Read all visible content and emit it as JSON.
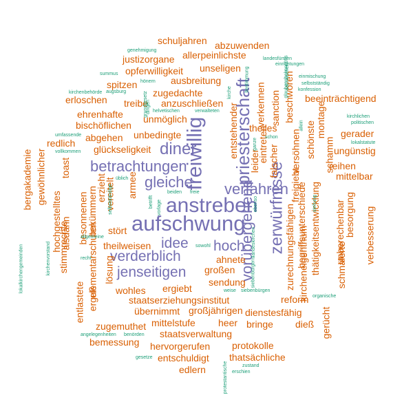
{
  "colors": {
    "purple": "#7570b3",
    "orange": "#d95f02",
    "teal": "#1b9e77"
  },
  "words": [
    {
      "text": "aufschwung",
      "c": "purple"
    },
    {
      "text": "anstreben",
      "c": "purple"
    },
    {
      "text": "freiwillig",
      "c": "purple"
    },
    {
      "text": "priesterschaft",
      "c": "purple"
    },
    {
      "text": "zerwürfnisse",
      "c": "purple"
    },
    {
      "text": "vorübergehend",
      "c": "purple"
    },
    {
      "text": "betrachtungen",
      "c": "purple"
    },
    {
      "text": "verfahren",
      "c": "purple"
    },
    {
      "text": "gleiche",
      "c": "purple"
    },
    {
      "text": "diner",
      "c": "purple"
    },
    {
      "text": "verderblich",
      "c": "purple"
    },
    {
      "text": "jenseitigen",
      "c": "purple"
    },
    {
      "text": "idee",
      "c": "purple"
    },
    {
      "text": "hoch",
      "c": "purple"
    },
    {
      "text": "schuljahren",
      "c": "orange"
    },
    {
      "text": "abzuwenden",
      "c": "orange"
    },
    {
      "text": "justizorgane",
      "c": "orange"
    },
    {
      "text": "allerpeinlichste",
      "c": "orange"
    },
    {
      "text": "opferwilligkeit",
      "c": "orange"
    },
    {
      "text": "unseligen",
      "c": "orange"
    },
    {
      "text": "spitzen",
      "c": "orange"
    },
    {
      "text": "ausbreitung",
      "c": "orange"
    },
    {
      "text": "zugedachte",
      "c": "orange"
    },
    {
      "text": "erloschen",
      "c": "orange"
    },
    {
      "text": "treibe",
      "c": "orange"
    },
    {
      "text": "anzuschließen",
      "c": "orange"
    },
    {
      "text": "ehrenhafte",
      "c": "orange"
    },
    {
      "text": "beeinträchtigend",
      "c": "orange"
    },
    {
      "text": "bischöflichen",
      "c": "orange"
    },
    {
      "text": "unmöglich",
      "c": "orange"
    },
    {
      "text": "abgehen",
      "c": "orange"
    },
    {
      "text": "unbedingte",
      "c": "orange"
    },
    {
      "text": "theiles",
      "c": "orange"
    },
    {
      "text": "gerader",
      "c": "orange"
    },
    {
      "text": "redlich",
      "c": "orange"
    },
    {
      "text": "glückseligkeit",
      "c": "orange"
    },
    {
      "text": "ungünstig",
      "c": "orange"
    },
    {
      "text": "reihen",
      "c": "orange"
    },
    {
      "text": "mittelbar",
      "c": "orange"
    },
    {
      "text": "stört",
      "c": "orange"
    },
    {
      "text": "theilweisen",
      "c": "orange"
    },
    {
      "text": "ahnete",
      "c": "orange"
    },
    {
      "text": "großen",
      "c": "orange"
    },
    {
      "text": "sendung",
      "c": "orange"
    },
    {
      "text": "wohles",
      "c": "orange"
    },
    {
      "text": "ergiebt",
      "c": "orange"
    },
    {
      "text": "staatserziehungsinstitut",
      "c": "orange"
    },
    {
      "text": "übernimmt",
      "c": "orange"
    },
    {
      "text": "großjährigen",
      "c": "orange"
    },
    {
      "text": "dienstesfähig",
      "c": "orange"
    },
    {
      "text": "reform",
      "c": "orange"
    },
    {
      "text": "zugemuthet",
      "c": "orange"
    },
    {
      "text": "mittelstufe",
      "c": "orange"
    },
    {
      "text": "heer",
      "c": "orange"
    },
    {
      "text": "bringe",
      "c": "orange"
    },
    {
      "text": "dieß",
      "c": "orange"
    },
    {
      "text": "staatsverwaltung",
      "c": "orange"
    },
    {
      "text": "bemessung",
      "c": "orange"
    },
    {
      "text": "hervorgerufen",
      "c": "orange"
    },
    {
      "text": "protokolle",
      "c": "orange"
    },
    {
      "text": "entschuldigt",
      "c": "orange"
    },
    {
      "text": "thatsächliche",
      "c": "orange"
    },
    {
      "text": "edlern",
      "c": "orange"
    },
    {
      "text": "bergakademie",
      "c": "orange",
      "v": true
    },
    {
      "text": "gewöhnlicher",
      "c": "orange",
      "v": true
    },
    {
      "text": "toast",
      "c": "orange",
      "v": true
    },
    {
      "text": "hochgestelltes",
      "c": "orange",
      "v": true
    },
    {
      "text": "stimmrechte",
      "c": "orange",
      "v": true
    },
    {
      "text": "alsdann",
      "c": "orange",
      "v": true
    },
    {
      "text": "besonnenen",
      "c": "orange",
      "v": true
    },
    {
      "text": "bekümmern",
      "c": "orange",
      "v": true
    },
    {
      "text": "elementarschulen",
      "c": "orange",
      "v": true
    },
    {
      "text": "erzieht",
      "c": "orange",
      "v": true
    },
    {
      "text": "vereitelt",
      "c": "orange",
      "v": true
    },
    {
      "text": "armee",
      "c": "orange",
      "v": true
    },
    {
      "text": "lösung",
      "c": "orange",
      "v": true
    },
    {
      "text": "entlastete",
      "c": "orange",
      "v": true
    },
    {
      "text": "erguß",
      "c": "orange",
      "v": true
    },
    {
      "text": "entstehender",
      "c": "orange",
      "v": true
    },
    {
      "text": "leider",
      "c": "orange",
      "v": true
    },
    {
      "text": "eintreten",
      "c": "orange",
      "v": true
    },
    {
      "text": "verkennen",
      "c": "orange",
      "v": true
    },
    {
      "text": "falscher",
      "c": "orange",
      "v": true
    },
    {
      "text": "sanction",
      "c": "orange",
      "v": true
    },
    {
      "text": "beschwören",
      "c": "orange",
      "v": true
    },
    {
      "text": "versöhnen",
      "c": "orange",
      "v": true
    },
    {
      "text": "schönste",
      "c": "orange",
      "v": true
    },
    {
      "text": "freigiebt",
      "c": "orange",
      "v": true
    },
    {
      "text": "zurechnungsfähigen",
      "c": "orange",
      "v": true
    },
    {
      "text": "montage",
      "c": "orange",
      "v": true
    },
    {
      "text": "begriffsunterschiede",
      "c": "orange",
      "v": true
    },
    {
      "text": "kircheneigenthum",
      "c": "orange",
      "v": true
    },
    {
      "text": "schamm",
      "c": "orange",
      "v": true
    },
    {
      "text": "thätigkeitsentwicklung",
      "c": "orange",
      "v": true
    },
    {
      "text": "unberechenbar",
      "c": "orange",
      "v": true
    },
    {
      "text": "besorgung",
      "c": "orange",
      "v": true
    },
    {
      "text": "schmälerte",
      "c": "orange",
      "v": true
    },
    {
      "text": "verbesserung",
      "c": "orange",
      "v": true
    },
    {
      "text": "gerücht",
      "c": "orange",
      "v": true
    },
    {
      "text": "genehmigung",
      "c": "teal"
    },
    {
      "text": "landesfürsten",
      "c": "teal"
    },
    {
      "text": "einrichtungen",
      "c": "teal"
    },
    {
      "text": "summus",
      "c": "teal"
    },
    {
      "text": "augsburg",
      "c": "teal"
    },
    {
      "text": "hönern",
      "c": "teal"
    },
    {
      "text": "kirchenbehörde",
      "c": "teal"
    },
    {
      "text": "einmischung",
      "c": "teal"
    },
    {
      "text": "selbstständig",
      "c": "teal"
    },
    {
      "text": "konfession",
      "c": "teal"
    },
    {
      "text": "helvetischen",
      "c": "teal"
    },
    {
      "text": "verwalteten",
      "c": "teal"
    },
    {
      "text": "kirchlichen",
      "c": "teal"
    },
    {
      "text": "politischen",
      "c": "teal"
    },
    {
      "text": "umfassende",
      "c": "teal"
    },
    {
      "text": "vollkommen",
      "c": "teal"
    },
    {
      "text": "lokalstatute",
      "c": "teal"
    },
    {
      "text": "schon",
      "c": "teal"
    },
    {
      "text": "beiden",
      "c": "teal"
    },
    {
      "text": "freie",
      "c": "teal"
    },
    {
      "text": "sowohl",
      "c": "teal"
    },
    {
      "text": "recht",
      "c": "teal"
    },
    {
      "text": "weise",
      "c": "teal"
    },
    {
      "text": "siebenbürgen",
      "c": "teal"
    },
    {
      "text": "organische",
      "c": "teal"
    },
    {
      "text": "angelegenheiten",
      "c": "teal"
    },
    {
      "text": "benörden",
      "c": "teal"
    },
    {
      "text": "gesetze",
      "c": "teal"
    },
    {
      "text": "zustand",
      "c": "teal"
    },
    {
      "text": "erschien",
      "c": "teal"
    },
    {
      "text": "üblich",
      "c": "teal"
    },
    {
      "text": "allgemeine",
      "c": "teal"
    },
    {
      "text": "bestimmung",
      "c": "teal",
      "v": true
    },
    {
      "text": "glaubensbekenntnis",
      "c": "teal",
      "v": true
    },
    {
      "text": "grundgesetz",
      "c": "teal",
      "v": true
    },
    {
      "text": "dingen",
      "c": "teal",
      "v": true
    },
    {
      "text": "kirche",
      "c": "teal",
      "v": true
    },
    {
      "text": "ganze",
      "c": "teal",
      "v": true
    },
    {
      "text": "allein",
      "c": "teal",
      "v": true
    },
    {
      "text": "stehung",
      "c": "teal",
      "v": true
    },
    {
      "text": "lokalkirchengemeinden",
      "c": "teal",
      "v": true
    },
    {
      "text": "kirchenvorstand",
      "c": "teal",
      "v": true
    },
    {
      "text": "landeskirchen",
      "c": "teal",
      "v": true
    },
    {
      "text": "siebenbürgens",
      "c": "teal",
      "v": true
    },
    {
      "text": "protestantische",
      "c": "teal",
      "v": true
    },
    {
      "text": "betrifft",
      "c": "teal",
      "v": true
    },
    {
      "text": "vorlage",
      "c": "teal",
      "v": true
    },
    {
      "text": "selbstständige",
      "c": "teal",
      "v": true
    },
    {
      "text": "ebenso",
      "c": "teal",
      "v": true
    },
    {
      "text": "katholischen",
      "c": "teal",
      "v": true
    }
  ]
}
